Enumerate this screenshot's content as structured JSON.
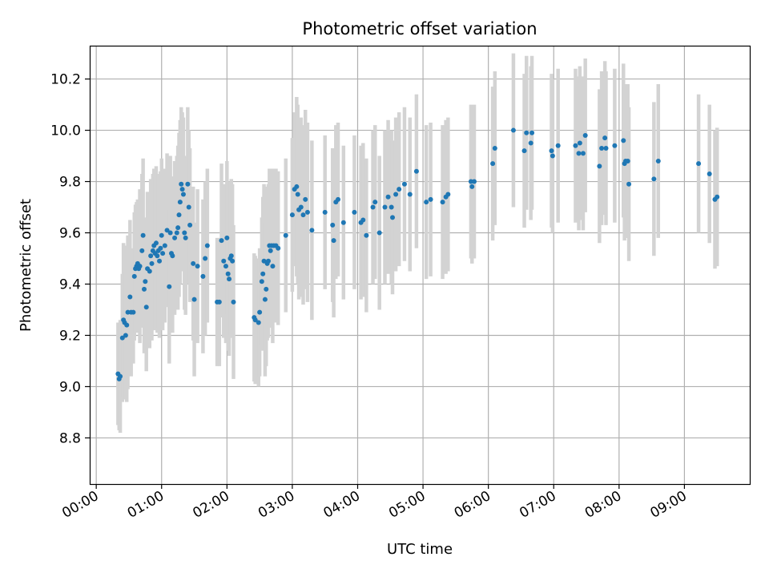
{
  "chart_data": {
    "type": "scatter",
    "title": "Photometric offset variation",
    "xlabel": "UTC time",
    "ylabel": "Photometric offset",
    "xlim": [
      "-00:06",
      "10:00"
    ],
    "ylim": [
      8.62,
      10.33
    ],
    "x_tick_labels": [
      "00:00",
      "01:00",
      "02:00",
      "03:00",
      "04:00",
      "05:00",
      "06:00",
      "07:00",
      "08:00",
      "09:00"
    ],
    "y_ticks": [
      8.8,
      9.0,
      9.2,
      9.4,
      9.6,
      9.8,
      10.0,
      10.2
    ],
    "y_tick_labels": [
      "8.8",
      "9.0",
      "9.2",
      "9.4",
      "9.6",
      "9.8",
      "10.0",
      "10.2"
    ],
    "grid": true,
    "colors": {
      "points": "#1f77b4",
      "error_bars": "#d3d3d3",
      "grid": "#b0b0b0"
    },
    "series": [
      {
        "marker": "point",
        "error_bars": true,
        "points": [
          {
            "t": "00:20",
            "y": 9.05,
            "err": 0.2
          },
          {
            "t": "00:21",
            "y": 9.03,
            "err": 0.2
          },
          {
            "t": "00:22",
            "y": 9.04,
            "err": 0.22
          },
          {
            "t": "00:24",
            "y": 9.19,
            "err": 0.25
          },
          {
            "t": "00:25",
            "y": 9.26,
            "err": 0.3
          },
          {
            "t": "00:26",
            "y": 9.25,
            "err": 0.3
          },
          {
            "t": "00:27",
            "y": 9.2,
            "err": 0.25
          },
          {
            "t": "00:28",
            "y": 9.24,
            "err": 0.3
          },
          {
            "t": "00:29",
            "y": 9.29,
            "err": 0.3
          },
          {
            "t": "00:31",
            "y": 9.35,
            "err": 0.3
          },
          {
            "t": "00:32",
            "y": 9.29,
            "err": 0.25
          },
          {
            "t": "00:34",
            "y": 9.29,
            "err": 0.2
          },
          {
            "t": "00:35",
            "y": 9.43,
            "err": 0.25
          },
          {
            "t": "00:36",
            "y": 9.46,
            "err": 0.25
          },
          {
            "t": "00:37",
            "y": 9.47,
            "err": 0.25
          },
          {
            "t": "00:38",
            "y": 9.48,
            "err": 0.25
          },
          {
            "t": "00:39",
            "y": 9.46,
            "err": 0.25
          },
          {
            "t": "00:40",
            "y": 9.47,
            "err": 0.3
          },
          {
            "t": "00:42",
            "y": 9.53,
            "err": 0.3
          },
          {
            "t": "00:43",
            "y": 9.59,
            "err": 0.3
          },
          {
            "t": "00:44",
            "y": 9.38,
            "err": 0.25
          },
          {
            "t": "00:45",
            "y": 9.41,
            "err": 0.25
          },
          {
            "t": "00:46",
            "y": 9.31,
            "err": 0.25
          },
          {
            "t": "00:47",
            "y": 9.46,
            "err": 0.3
          },
          {
            "t": "00:49",
            "y": 9.45,
            "err": 0.3
          },
          {
            "t": "00:50",
            "y": 9.51,
            "err": 0.3
          },
          {
            "t": "00:51",
            "y": 9.48,
            "err": 0.3
          },
          {
            "t": "00:52",
            "y": 9.53,
            "err": 0.3
          },
          {
            "t": "00:53",
            "y": 9.55,
            "err": 0.3
          },
          {
            "t": "00:54",
            "y": 9.52,
            "err": 0.3
          },
          {
            "t": "00:55",
            "y": 9.56,
            "err": 0.3
          },
          {
            "t": "00:56",
            "y": 9.51,
            "err": 0.3
          },
          {
            "t": "00:57",
            "y": 9.53,
            "err": 0.3
          },
          {
            "t": "00:58",
            "y": 9.49,
            "err": 0.3
          },
          {
            "t": "00:59",
            "y": 9.54,
            "err": 0.3
          },
          {
            "t": "01:00",
            "y": 9.59,
            "err": 0.3
          },
          {
            "t": "01:01",
            "y": 9.52,
            "err": 0.3
          },
          {
            "t": "01:03",
            "y": 9.55,
            "err": 0.3
          },
          {
            "t": "01:05",
            "y": 9.61,
            "err": 0.3
          },
          {
            "t": "01:07",
            "y": 9.39,
            "err": 0.3
          },
          {
            "t": "01:08",
            "y": 9.6,
            "err": 0.3
          },
          {
            "t": "01:09",
            "y": 9.52,
            "err": 0.3
          },
          {
            "t": "01:10",
            "y": 9.51,
            "err": 0.3
          },
          {
            "t": "01:12",
            "y": 9.58,
            "err": 0.3
          },
          {
            "t": "01:14",
            "y": 9.6,
            "err": 0.3
          },
          {
            "t": "01:15",
            "y": 9.62,
            "err": 0.32
          },
          {
            "t": "01:16",
            "y": 9.67,
            "err": 0.32
          },
          {
            "t": "01:17",
            "y": 9.72,
            "err": 0.32
          },
          {
            "t": "01:18",
            "y": 9.79,
            "err": 0.3
          },
          {
            "t": "01:19",
            "y": 9.77,
            "err": 0.3
          },
          {
            "t": "01:20",
            "y": 9.75,
            "err": 0.3
          },
          {
            "t": "01:21",
            "y": 9.6,
            "err": 0.3
          },
          {
            "t": "01:22",
            "y": 9.58,
            "err": 0.3
          },
          {
            "t": "01:24",
            "y": 9.79,
            "err": 0.3
          },
          {
            "t": "01:25",
            "y": 9.7,
            "err": 0.3
          },
          {
            "t": "01:26",
            "y": 9.63,
            "err": 0.3
          },
          {
            "t": "01:29",
            "y": 9.48,
            "err": 0.3
          },
          {
            "t": "01:30",
            "y": 9.34,
            "err": 0.3
          },
          {
            "t": "01:33",
            "y": 9.47,
            "err": 0.3
          },
          {
            "t": "01:38",
            "y": 9.43,
            "err": 0.3
          },
          {
            "t": "01:40",
            "y": 9.5,
            "err": 0.3
          },
          {
            "t": "01:42",
            "y": 9.55,
            "err": 0.3
          },
          {
            "t": "01:51",
            "y": 9.33,
            "err": 0.25
          },
          {
            "t": "01:53",
            "y": 9.33,
            "err": 0.25
          },
          {
            "t": "01:55",
            "y": 9.57,
            "err": 0.3
          },
          {
            "t": "01:57",
            "y": 9.49,
            "err": 0.3
          },
          {
            "t": "01:59",
            "y": 9.47,
            "err": 0.3
          },
          {
            "t": "02:00",
            "y": 9.58,
            "err": 0.3
          },
          {
            "t": "02:01",
            "y": 9.44,
            "err": 0.3
          },
          {
            "t": "02:02",
            "y": 9.42,
            "err": 0.3
          },
          {
            "t": "02:03",
            "y": 9.5,
            "err": 0.3
          },
          {
            "t": "02:04",
            "y": 9.51,
            "err": 0.3
          },
          {
            "t": "02:05",
            "y": 9.49,
            "err": 0.3
          },
          {
            "t": "02:06",
            "y": 9.33,
            "err": 0.3
          },
          {
            "t": "02:25",
            "y": 9.27,
            "err": 0.25
          },
          {
            "t": "02:26",
            "y": 9.26,
            "err": 0.25
          },
          {
            "t": "02:29",
            "y": 9.25,
            "err": 0.25
          },
          {
            "t": "02:30",
            "y": 9.29,
            "err": 0.25
          },
          {
            "t": "02:32",
            "y": 9.41,
            "err": 0.25
          },
          {
            "t": "02:33",
            "y": 9.44,
            "err": 0.3
          },
          {
            "t": "02:34",
            "y": 9.49,
            "err": 0.3
          },
          {
            "t": "02:35",
            "y": 9.34,
            "err": 0.3
          },
          {
            "t": "02:36",
            "y": 9.38,
            "err": 0.3
          },
          {
            "t": "02:37",
            "y": 9.48,
            "err": 0.3
          },
          {
            "t": "02:38",
            "y": 9.49,
            "err": 0.3
          },
          {
            "t": "02:39",
            "y": 9.55,
            "err": 0.3
          },
          {
            "t": "02:40",
            "y": 9.53,
            "err": 0.3
          },
          {
            "t": "02:41",
            "y": 9.55,
            "err": 0.3
          },
          {
            "t": "02:42",
            "y": 9.47,
            "err": 0.3
          },
          {
            "t": "02:43",
            "y": 9.55,
            "err": 0.3
          },
          {
            "t": "02:45",
            "y": 9.55,
            "err": 0.3
          },
          {
            "t": "02:47",
            "y": 9.54,
            "err": 0.3
          },
          {
            "t": "02:54",
            "y": 9.59,
            "err": 0.3
          },
          {
            "t": "03:00",
            "y": 9.67,
            "err": 0.3
          },
          {
            "t": "03:02",
            "y": 9.77,
            "err": 0.3
          },
          {
            "t": "03:04",
            "y": 9.78,
            "err": 0.35
          },
          {
            "t": "03:05",
            "y": 9.75,
            "err": 0.35
          },
          {
            "t": "03:06",
            "y": 9.69,
            "err": 0.35
          },
          {
            "t": "03:08",
            "y": 9.7,
            "err": 0.35
          },
          {
            "t": "03:10",
            "y": 9.67,
            "err": 0.35
          },
          {
            "t": "03:12",
            "y": 9.73,
            "err": 0.35
          },
          {
            "t": "03:14",
            "y": 9.68,
            "err": 0.35
          },
          {
            "t": "03:18",
            "y": 9.61,
            "err": 0.35
          },
          {
            "t": "03:30",
            "y": 9.68,
            "err": 0.3
          },
          {
            "t": "03:37",
            "y": 9.63,
            "err": 0.3
          },
          {
            "t": "03:38",
            "y": 9.57,
            "err": 0.3
          },
          {
            "t": "03:40",
            "y": 9.72,
            "err": 0.3
          },
          {
            "t": "03:42",
            "y": 9.73,
            "err": 0.3
          },
          {
            "t": "03:47",
            "y": 9.64,
            "err": 0.3
          },
          {
            "t": "03:57",
            "y": 9.68,
            "err": 0.3
          },
          {
            "t": "04:03",
            "y": 9.64,
            "err": 0.3
          },
          {
            "t": "04:05",
            "y": 9.65,
            "err": 0.3
          },
          {
            "t": "04:08",
            "y": 9.59,
            "err": 0.3
          },
          {
            "t": "04:14",
            "y": 9.7,
            "err": 0.3
          },
          {
            "t": "04:16",
            "y": 9.72,
            "err": 0.3
          },
          {
            "t": "04:20",
            "y": 9.6,
            "err": 0.3
          },
          {
            "t": "04:25",
            "y": 9.7,
            "err": 0.3
          },
          {
            "t": "04:28",
            "y": 9.74,
            "err": 0.3
          },
          {
            "t": "04:31",
            "y": 9.7,
            "err": 0.3
          },
          {
            "t": "04:32",
            "y": 9.66,
            "err": 0.3
          },
          {
            "t": "04:35",
            "y": 9.75,
            "err": 0.3
          },
          {
            "t": "04:38",
            "y": 9.77,
            "err": 0.3
          },
          {
            "t": "04:43",
            "y": 9.79,
            "err": 0.3
          },
          {
            "t": "04:48",
            "y": 9.75,
            "err": 0.3
          },
          {
            "t": "04:54",
            "y": 9.84,
            "err": 0.3
          },
          {
            "t": "05:03",
            "y": 9.72,
            "err": 0.3
          },
          {
            "t": "05:07",
            "y": 9.73,
            "err": 0.3
          },
          {
            "t": "05:18",
            "y": 9.72,
            "err": 0.3
          },
          {
            "t": "05:21",
            "y": 9.74,
            "err": 0.3
          },
          {
            "t": "05:23",
            "y": 9.75,
            "err": 0.3
          },
          {
            "t": "05:44",
            "y": 9.8,
            "err": 0.3
          },
          {
            "t": "05:45",
            "y": 9.78,
            "err": 0.3
          },
          {
            "t": "05:47",
            "y": 9.8,
            "err": 0.3
          },
          {
            "t": "06:04",
            "y": 9.87,
            "err": 0.3
          },
          {
            "t": "06:06",
            "y": 9.93,
            "err": 0.3
          },
          {
            "t": "06:23",
            "y": 10.0,
            "err": 0.3
          },
          {
            "t": "06:33",
            "y": 9.92,
            "err": 0.3
          },
          {
            "t": "06:35",
            "y": 9.99,
            "err": 0.3
          },
          {
            "t": "06:39",
            "y": 9.95,
            "err": 0.3
          },
          {
            "t": "06:40",
            "y": 9.99,
            "err": 0.3
          },
          {
            "t": "06:58",
            "y": 9.92,
            "err": 0.3
          },
          {
            "t": "06:59",
            "y": 9.9,
            "err": 0.3
          },
          {
            "t": "07:04",
            "y": 9.94,
            "err": 0.3
          },
          {
            "t": "07:20",
            "y": 9.94,
            "err": 0.3
          },
          {
            "t": "07:23",
            "y": 9.91,
            "err": 0.3
          },
          {
            "t": "07:24",
            "y": 9.95,
            "err": 0.3
          },
          {
            "t": "07:27",
            "y": 9.91,
            "err": 0.3
          },
          {
            "t": "07:29",
            "y": 9.98,
            "err": 0.3
          },
          {
            "t": "07:42",
            "y": 9.86,
            "err": 0.3
          },
          {
            "t": "07:44",
            "y": 9.93,
            "err": 0.3
          },
          {
            "t": "07:47",
            "y": 9.97,
            "err": 0.3
          },
          {
            "t": "07:48",
            "y": 9.93,
            "err": 0.3
          },
          {
            "t": "07:56",
            "y": 9.94,
            "err": 0.3
          },
          {
            "t": "08:04",
            "y": 9.96,
            "err": 0.3
          },
          {
            "t": "08:05",
            "y": 9.87,
            "err": 0.3
          },
          {
            "t": "08:06",
            "y": 9.88,
            "err": 0.3
          },
          {
            "t": "08:08",
            "y": 9.88,
            "err": 0.3
          },
          {
            "t": "08:09",
            "y": 9.79,
            "err": 0.3
          },
          {
            "t": "08:32",
            "y": 9.81,
            "err": 0.3
          },
          {
            "t": "08:36",
            "y": 9.88,
            "err": 0.3
          },
          {
            "t": "09:13",
            "y": 9.87,
            "err": 0.27
          },
          {
            "t": "09:23",
            "y": 9.83,
            "err": 0.27
          },
          {
            "t": "09:28",
            "y": 9.73,
            "err": 0.27
          },
          {
            "t": "09:30",
            "y": 9.74,
            "err": 0.27
          }
        ]
      }
    ]
  }
}
